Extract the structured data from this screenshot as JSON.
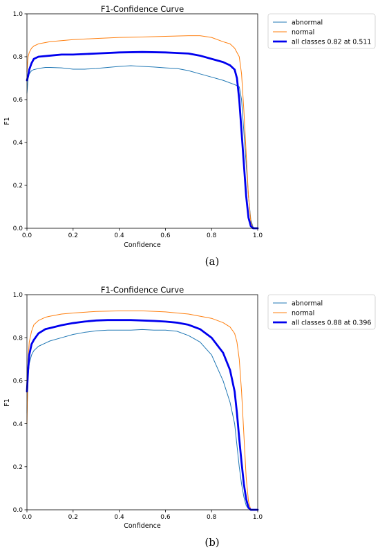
{
  "chart_data": [
    {
      "type": "line",
      "title": "F1-Confidence Curve",
      "xlabel": "Confidence",
      "ylabel": "F1",
      "xlim": [
        0,
        1
      ],
      "ylim": [
        0,
        1
      ],
      "xticks": [
        "0.0",
        "0.2",
        "0.4",
        "0.6",
        "0.8",
        "1.0"
      ],
      "yticks": [
        "0.0",
        "0.2",
        "0.4",
        "0.6",
        "0.8",
        "1.0"
      ],
      "grid": false,
      "legend_position": "outside-right",
      "caption": "(a)",
      "series": [
        {
          "name": "abnormal",
          "color": "#1f77b4",
          "x": [
            0.0,
            0.005,
            0.01,
            0.02,
            0.03,
            0.05,
            0.08,
            0.1,
            0.15,
            0.2,
            0.25,
            0.3,
            0.35,
            0.4,
            0.45,
            0.5,
            0.55,
            0.6,
            0.65,
            0.7,
            0.75,
            0.8,
            0.85,
            0.9,
            0.92,
            0.93,
            0.94,
            0.95,
            0.96,
            0.97,
            0.98,
            0.99,
            1.0
          ],
          "y": [
            0.63,
            0.7,
            0.72,
            0.735,
            0.74,
            0.745,
            0.75,
            0.75,
            0.748,
            0.742,
            0.742,
            0.745,
            0.75,
            0.755,
            0.758,
            0.755,
            0.752,
            0.748,
            0.745,
            0.735,
            0.72,
            0.705,
            0.69,
            0.67,
            0.66,
            0.6,
            0.45,
            0.3,
            0.15,
            0.04,
            0.005,
            0.0,
            0.0
          ]
        },
        {
          "name": "normal",
          "color": "#ff7f0e",
          "x": [
            0.0,
            0.005,
            0.01,
            0.02,
            0.03,
            0.05,
            0.1,
            0.15,
            0.2,
            0.3,
            0.4,
            0.5,
            0.6,
            0.7,
            0.75,
            0.8,
            0.85,
            0.88,
            0.9,
            0.92,
            0.93,
            0.94,
            0.95,
            0.96,
            0.97,
            0.98,
            1.0
          ],
          "y": [
            0.73,
            0.8,
            0.82,
            0.84,
            0.85,
            0.86,
            0.87,
            0.875,
            0.88,
            0.885,
            0.89,
            0.892,
            0.895,
            0.898,
            0.898,
            0.89,
            0.87,
            0.86,
            0.84,
            0.8,
            0.72,
            0.55,
            0.35,
            0.15,
            0.03,
            0.0,
            0.0
          ]
        },
        {
          "name": "all classes 0.82 at 0.511",
          "color": "#0000ee",
          "x": [
            0.0,
            0.005,
            0.01,
            0.02,
            0.03,
            0.05,
            0.1,
            0.15,
            0.2,
            0.3,
            0.4,
            0.5,
            0.6,
            0.7,
            0.75,
            0.8,
            0.85,
            0.88,
            0.9,
            0.91,
            0.92,
            0.93,
            0.94,
            0.95,
            0.96,
            0.97,
            0.98,
            1.0
          ],
          "y": [
            0.69,
            0.71,
            0.74,
            0.77,
            0.79,
            0.8,
            0.805,
            0.81,
            0.81,
            0.815,
            0.82,
            0.822,
            0.82,
            0.815,
            0.805,
            0.79,
            0.775,
            0.76,
            0.74,
            0.7,
            0.6,
            0.45,
            0.3,
            0.15,
            0.05,
            0.01,
            0.0,
            0.0
          ]
        }
      ]
    },
    {
      "type": "line",
      "title": "F1-Confidence Curve",
      "xlabel": "Confidence",
      "ylabel": "F1",
      "xlim": [
        0,
        1
      ],
      "ylim": [
        0,
        1
      ],
      "xticks": [
        "0.0",
        "0.2",
        "0.4",
        "0.6",
        "0.8",
        "1.0"
      ],
      "yticks": [
        "0.0",
        "0.2",
        "0.4",
        "0.6",
        "0.8",
        "1.0"
      ],
      "grid": false,
      "legend_position": "outside-right",
      "caption": "(b)",
      "series": [
        {
          "name": "abnormal",
          "color": "#1f77b4",
          "x": [
            0.0,
            0.005,
            0.01,
            0.02,
            0.03,
            0.05,
            0.08,
            0.1,
            0.15,
            0.2,
            0.25,
            0.3,
            0.35,
            0.4,
            0.45,
            0.5,
            0.55,
            0.6,
            0.65,
            0.7,
            0.75,
            0.8,
            0.85,
            0.88,
            0.9,
            0.91,
            0.92,
            0.93,
            0.94,
            0.95,
            0.96,
            0.98,
            1.0
          ],
          "y": [
            0.45,
            0.62,
            0.68,
            0.72,
            0.74,
            0.76,
            0.775,
            0.785,
            0.8,
            0.815,
            0.825,
            0.832,
            0.835,
            0.835,
            0.835,
            0.838,
            0.835,
            0.835,
            0.83,
            0.81,
            0.78,
            0.72,
            0.6,
            0.5,
            0.4,
            0.3,
            0.2,
            0.12,
            0.06,
            0.02,
            0.005,
            0.0,
            0.0
          ]
        },
        {
          "name": "normal",
          "color": "#ff7f0e",
          "x": [
            0.0,
            0.005,
            0.01,
            0.02,
            0.03,
            0.05,
            0.08,
            0.1,
            0.15,
            0.2,
            0.3,
            0.4,
            0.5,
            0.6,
            0.7,
            0.75,
            0.8,
            0.85,
            0.88,
            0.9,
            0.91,
            0.92,
            0.93,
            0.94,
            0.95,
            0.96,
            0.97,
            1.0
          ],
          "y": [
            0.4,
            0.7,
            0.78,
            0.83,
            0.86,
            0.88,
            0.895,
            0.9,
            0.91,
            0.915,
            0.922,
            0.925,
            0.925,
            0.92,
            0.91,
            0.9,
            0.89,
            0.87,
            0.85,
            0.82,
            0.78,
            0.7,
            0.55,
            0.35,
            0.15,
            0.04,
            0.0,
            0.0
          ]
        },
        {
          "name": "all classes 0.88 at 0.396",
          "color": "#0000ee",
          "x": [
            0.0,
            0.005,
            0.01,
            0.02,
            0.03,
            0.05,
            0.08,
            0.1,
            0.15,
            0.2,
            0.25,
            0.3,
            0.35,
            0.4,
            0.45,
            0.5,
            0.55,
            0.6,
            0.65,
            0.7,
            0.75,
            0.8,
            0.85,
            0.88,
            0.9,
            0.91,
            0.92,
            0.93,
            0.94,
            0.95,
            0.96,
            0.97,
            1.0
          ],
          "y": [
            0.55,
            0.65,
            0.72,
            0.77,
            0.79,
            0.82,
            0.84,
            0.845,
            0.858,
            0.868,
            0.875,
            0.88,
            0.882,
            0.882,
            0.882,
            0.88,
            0.878,
            0.875,
            0.87,
            0.86,
            0.84,
            0.8,
            0.73,
            0.65,
            0.55,
            0.45,
            0.33,
            0.22,
            0.12,
            0.05,
            0.01,
            0.0,
            0.0
          ]
        }
      ]
    }
  ]
}
